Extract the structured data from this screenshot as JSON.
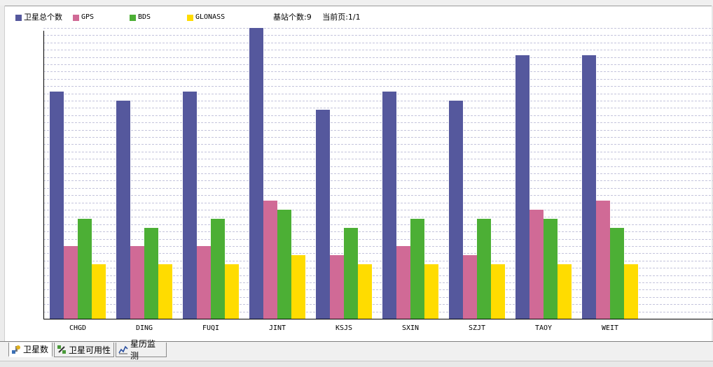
{
  "legend": [
    {
      "label": "卫星总个数",
      "color": "#55589d",
      "mono": false
    },
    {
      "label": "GPS",
      "color": "#d06a96",
      "mono": true
    },
    {
      "label": "BDS",
      "color": "#4caf35",
      "mono": true
    },
    {
      "label": "GLONASS",
      "color": "#ffdc00",
      "mono": true
    }
  ],
  "info": {
    "station_count": "基站个数:9",
    "page": "当前页:1/1"
  },
  "tabs": [
    {
      "label": "卫星数",
      "icon": "satellite-icon",
      "active": true
    },
    {
      "label": "卫星可用性",
      "icon": "satellite-check-icon",
      "active": false
    },
    {
      "label": "星历监测",
      "icon": "ephemeris-chart-icon",
      "active": false
    }
  ],
  "chart_data": {
    "type": "bar",
    "categories": [
      "CHGD",
      "DING",
      "FUQI",
      "JINT",
      "KSJS",
      "SXIN",
      "SZJT",
      "TAOY",
      "WEIT"
    ],
    "series": [
      {
        "name": "卫星总个数",
        "color": "#55589d",
        "values": [
          25,
          24,
          25,
          32,
          23,
          25,
          24,
          29,
          29
        ]
      },
      {
        "name": "GPS",
        "color": "#d06a96",
        "values": [
          8,
          8,
          8,
          13,
          7,
          8,
          7,
          12,
          13
        ]
      },
      {
        "name": "BDS",
        "color": "#4caf35",
        "values": [
          11,
          10,
          11,
          12,
          10,
          11,
          11,
          11,
          10
        ]
      },
      {
        "name": "GLONASS",
        "color": "#ffdc00",
        "values": [
          6,
          6,
          6,
          7,
          6,
          6,
          6,
          6,
          6
        ]
      }
    ],
    "ylim": [
      0,
      32
    ],
    "grid": true,
    "legend_position": "top-left"
  }
}
